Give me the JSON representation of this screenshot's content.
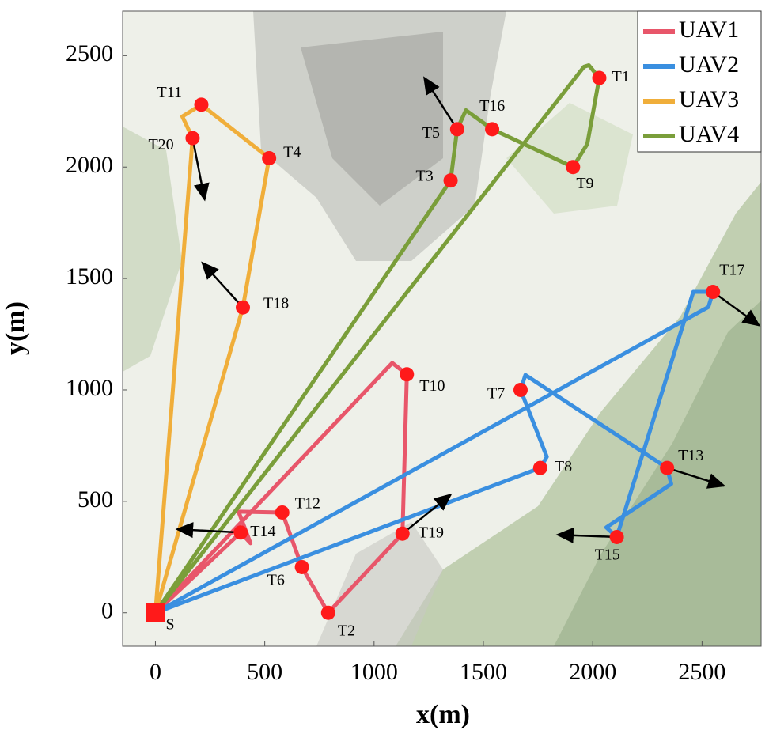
{
  "chart_data": {
    "type": "path",
    "xlabel": "x(m)",
    "ylabel": "y(m)",
    "xlim": [
      -150,
      2770
    ],
    "ylim": [
      -150,
      2700
    ],
    "xticks": [
      0,
      500,
      1000,
      1500,
      2000,
      2500
    ],
    "yticks": [
      0,
      500,
      1000,
      1500,
      2000,
      2500
    ],
    "legend": "upper right",
    "start": {
      "label": "S",
      "x": 0,
      "y": 0,
      "color": "#ff1a1a"
    },
    "targets": {
      "color": "#ff1a1a",
      "names": [
        "T1",
        "T2",
        "T3",
        "T4",
        "T5",
        "T6",
        "T7",
        "T8",
        "T9",
        "T10",
        "T11",
        "T12",
        "T13",
        "T14",
        "T15",
        "T16",
        "T17",
        "T18",
        "T19",
        "T20"
      ],
      "x": [
        2030,
        790,
        1350,
        520,
        1380,
        670,
        1670,
        1760,
        1910,
        1150,
        210,
        580,
        2340,
        390,
        2110,
        1540,
        2550,
        400,
        1130,
        170
      ],
      "y": [
        2400,
        0,
        1940,
        2040,
        2170,
        205,
        1000,
        650,
        2000,
        1070,
        2280,
        450,
        650,
        360,
        340,
        2170,
        1440,
        1370,
        355,
        2130
      ]
    },
    "headings": {
      "color": "#000000",
      "x": [
        null,
        null,
        null,
        null,
        1230,
        null,
        null,
        null,
        null,
        null,
        null,
        null,
        2600,
        100,
        1840,
        null,
        2760,
        215,
        1350,
        225
      ],
      "y": [
        null,
        null,
        null,
        null,
        2400,
        null,
        null,
        null,
        null,
        null,
        null,
        null,
        570,
        375,
        350,
        null,
        1290,
        1570,
        530,
        1855
      ]
    },
    "series": [
      {
        "name": "UAV1",
        "color": "#e8566a",
        "x": [
          0,
          390,
          435,
          380,
          580,
          670,
          790,
          1130,
          1150,
          1083,
          0
        ],
        "y": [
          0,
          360,
          312,
          454,
          450,
          205,
          0,
          355,
          1070,
          1121,
          0
        ]
      },
      {
        "name": "UAV2",
        "color": "#3a8fe0",
        "x": [
          0,
          1760,
          1790,
          1670,
          1692,
          2340,
          2359,
          2062,
          2110,
          2460,
          2550,
          2529,
          0
        ],
        "y": [
          0,
          650,
          700,
          1000,
          1067,
          650,
          578,
          383,
          340,
          1440,
          1440,
          1372,
          0
        ]
      },
      {
        "name": "UAV3",
        "color": "#f0ae3a",
        "x": [
          0,
          400,
          520,
          210,
          123,
          170,
          0
        ],
        "y": [
          0,
          1370,
          2040,
          2280,
          2227,
          2130,
          0
        ]
      },
      {
        "name": "UAV4",
        "color": "#7a9e3a",
        "x": [
          0,
          1350,
          1380,
          1420,
          1540,
          1910,
          1975,
          2030,
          1982,
          1960,
          0
        ],
        "y": [
          0,
          1940,
          2170,
          2255,
          2170,
          2000,
          2103,
          2400,
          2457,
          2450,
          0
        ]
      }
    ]
  }
}
